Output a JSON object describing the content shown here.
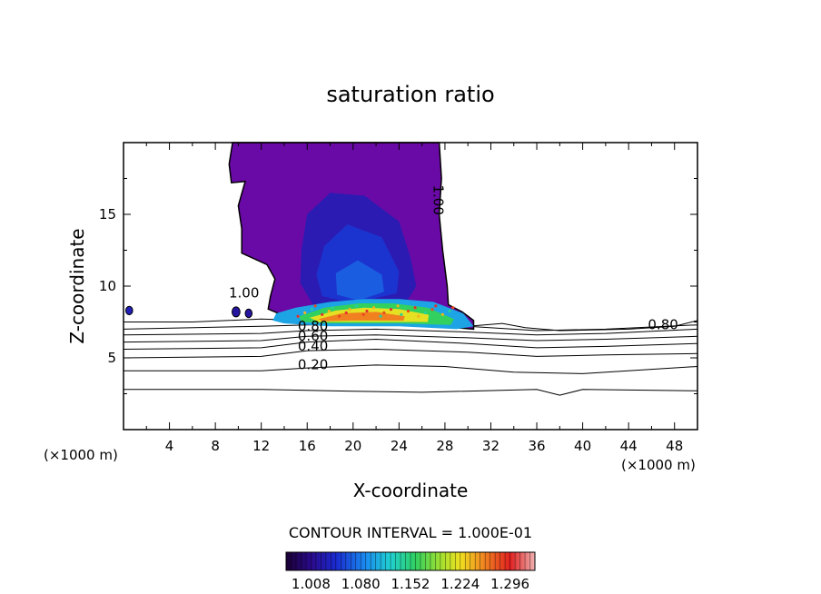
{
  "chart_data": {
    "type": "contour",
    "title": "saturation ratio",
    "xlabel": "X-coordinate",
    "ylabel": "Z-coordinate",
    "x_unit_left": "(×1000 m)",
    "x_unit_right": "(×1000 m)",
    "xlim": [
      0,
      50
    ],
    "ylim": [
      0,
      20
    ],
    "x_ticks": [
      4,
      8,
      12,
      16,
      20,
      24,
      28,
      32,
      36,
      40,
      44,
      48
    ],
    "y_ticks": [
      5,
      10,
      15
    ],
    "contour_interval_text": "CONTOUR INTERVAL = 1.000E-01",
    "colorbar_ticks": [
      "1.008",
      "1.080",
      "1.152",
      "1.224",
      "1.296"
    ],
    "colorbar_range": [
      0.972,
      1.332
    ],
    "contour_labels": [
      {
        "text": "0.20",
        "x": 16.5,
        "z": 4.2
      },
      {
        "text": "0.40",
        "x": 16.5,
        "z": 5.5
      },
      {
        "text": "0.60",
        "x": 16.5,
        "z": 6.2
      },
      {
        "text": "0.80",
        "x": 16.5,
        "z": 6.9
      },
      {
        "text": "0.80",
        "x": 47.0,
        "z": 7.0
      },
      {
        "text": "1.00",
        "x": 10.5,
        "z": 9.2
      },
      {
        "text": "1.00",
        "x": 27.0,
        "z": 16.0
      }
    ],
    "background_lines": [
      {
        "points": [
          [
            0,
            2.8
          ],
          [
            12,
            2.8
          ],
          [
            18,
            2.7
          ],
          [
            26,
            2.6
          ],
          [
            36,
            2.8
          ],
          [
            38,
            2.4
          ],
          [
            40,
            2.8
          ],
          [
            50,
            2.7
          ]
        ]
      },
      {
        "points": [
          [
            0,
            4.1
          ],
          [
            12,
            4.1
          ],
          [
            16,
            4.3
          ],
          [
            22,
            4.5
          ],
          [
            28,
            4.4
          ],
          [
            34,
            4.0
          ],
          [
            40,
            3.9
          ],
          [
            46,
            4.2
          ],
          [
            50,
            4.4
          ]
        ]
      },
      {
        "points": [
          [
            0,
            5.0
          ],
          [
            12,
            5.1
          ],
          [
            16,
            5.5
          ],
          [
            22,
            5.6
          ],
          [
            30,
            5.4
          ],
          [
            36,
            5.1
          ],
          [
            42,
            5.2
          ],
          [
            50,
            5.3
          ]
        ]
      },
      {
        "points": [
          [
            0,
            5.6
          ],
          [
            12,
            5.7
          ],
          [
            16,
            6.1
          ],
          [
            22,
            6.3
          ],
          [
            30,
            6.0
          ],
          [
            36,
            5.7
          ],
          [
            42,
            5.8
          ],
          [
            50,
            6.0
          ]
        ]
      },
      {
        "points": [
          [
            0,
            6.1
          ],
          [
            12,
            6.2
          ],
          [
            16,
            6.5
          ],
          [
            22,
            6.6
          ],
          [
            30,
            6.4
          ],
          [
            36,
            6.2
          ],
          [
            42,
            6.3
          ],
          [
            50,
            6.5
          ]
        ]
      },
      {
        "points": [
          [
            0,
            6.6
          ],
          [
            12,
            6.7
          ],
          [
            16,
            6.9
          ],
          [
            22,
            7.0
          ],
          [
            30,
            6.8
          ],
          [
            36,
            6.6
          ],
          [
            42,
            6.7
          ],
          [
            50,
            7.0
          ]
        ]
      },
      {
        "points": [
          [
            0,
            7.0
          ],
          [
            12,
            7.2
          ],
          [
            16,
            7.3
          ],
          [
            22,
            7.3
          ],
          [
            30,
            7.2
          ],
          [
            36,
            6.9
          ],
          [
            42,
            7.0
          ],
          [
            50,
            7.3
          ]
        ]
      },
      {
        "points": [
          [
            0,
            7.5
          ],
          [
            6,
            7.5
          ],
          [
            12,
            7.7
          ],
          [
            16,
            7.6
          ],
          [
            30,
            7.2
          ],
          [
            33,
            7.4
          ],
          [
            35,
            7.1
          ],
          [
            38,
            6.9
          ],
          [
            44,
            7.0
          ],
          [
            48,
            7.2
          ],
          [
            50,
            7.6
          ]
        ]
      }
    ],
    "plume_outline": [
      [
        9.2,
        18.5
      ],
      [
        9.5,
        20
      ],
      [
        27.5,
        20
      ],
      [
        27.7,
        17.5
      ],
      [
        27.5,
        15
      ],
      [
        27.8,
        12.5
      ],
      [
        28.2,
        10.0
      ],
      [
        28.3,
        8.7
      ],
      [
        29.5,
        8.2
      ],
      [
        30.5,
        7.6
      ],
      [
        30.5,
        7.0
      ],
      [
        26,
        7.3
      ],
      [
        20,
        7.4
      ],
      [
        15,
        7.6
      ],
      [
        12.6,
        8.4
      ],
      [
        12.8,
        9.3
      ],
      [
        13.2,
        10.5
      ],
      [
        12.5,
        11.5
      ],
      [
        10.3,
        12.3
      ],
      [
        10.3,
        14.0
      ],
      [
        10.0,
        15.6
      ],
      [
        10.6,
        17.3
      ],
      [
        9.4,
        17.2
      ]
    ],
    "plume_layers": [
      {
        "value": 1.03,
        "points": [
          [
            16,
            15
          ],
          [
            18,
            16.5
          ],
          [
            21,
            16.3
          ],
          [
            24,
            14.5
          ],
          [
            25,
            12
          ],
          [
            25.5,
            10
          ],
          [
            24.5,
            8.7
          ],
          [
            20,
            8.4
          ],
          [
            16.5,
            8.7
          ],
          [
            15.4,
            10.2
          ],
          [
            15.5,
            12.5
          ]
        ]
      },
      {
        "value": 1.05,
        "points": [
          [
            17.5,
            12.8
          ],
          [
            19.5,
            14.3
          ],
          [
            22.5,
            13.4
          ],
          [
            24,
            11
          ],
          [
            23.8,
            9.5
          ],
          [
            20,
            8.8
          ],
          [
            17.3,
            9.3
          ],
          [
            16.8,
            10.8
          ]
        ]
      },
      {
        "value": 1.07,
        "points": [
          [
            18.5,
            10.9
          ],
          [
            20.4,
            11.8
          ],
          [
            22.5,
            10.8
          ],
          [
            22.7,
            9.6
          ],
          [
            20.5,
            9.0
          ],
          [
            18.6,
            9.4
          ]
        ]
      }
    ],
    "band_layers": [
      {
        "value": 1.1,
        "points": [
          [
            13.3,
            8.1
          ],
          [
            15,
            8.5
          ],
          [
            18,
            8.9
          ],
          [
            21,
            9.1
          ],
          [
            24,
            9.1
          ],
          [
            27,
            8.9
          ],
          [
            29.6,
            8.1
          ],
          [
            30.5,
            7.2
          ],
          [
            29,
            7.0
          ],
          [
            24,
            7.2
          ],
          [
            18,
            7.2
          ],
          [
            14,
            7.4
          ],
          [
            13.0,
            7.6
          ]
        ]
      },
      {
        "value": 1.16,
        "points": [
          [
            15.3,
            7.9
          ],
          [
            17.5,
            8.5
          ],
          [
            20.5,
            8.8
          ],
          [
            23.5,
            8.8
          ],
          [
            26.5,
            8.5
          ],
          [
            28.8,
            7.7
          ],
          [
            28.5,
            7.3
          ],
          [
            24,
            7.4
          ],
          [
            18,
            7.4
          ],
          [
            15.5,
            7.5
          ]
        ]
      },
      {
        "value": 1.22,
        "points": [
          [
            16.2,
            7.8
          ],
          [
            18.5,
            8.3
          ],
          [
            21,
            8.5
          ],
          [
            24,
            8.4
          ],
          [
            26.6,
            8.0
          ],
          [
            26.5,
            7.5
          ],
          [
            22,
            7.5
          ],
          [
            17,
            7.5
          ]
        ]
      },
      {
        "value": 1.26,
        "points": [
          [
            17.0,
            7.7
          ],
          [
            19,
            8.1
          ],
          [
            22,
            8.2
          ],
          [
            24.5,
            7.9
          ],
          [
            24.4,
            7.6
          ],
          [
            20,
            7.6
          ],
          [
            17.3,
            7.55
          ]
        ]
      }
    ],
    "small_features": [
      {
        "value": 1.02,
        "x": 9.8,
        "z": 8.2,
        "r": 0.35
      },
      {
        "value": 1.02,
        "x": 10.9,
        "z": 8.1,
        "r": 0.3
      },
      {
        "value": 1.03,
        "x": 0.5,
        "z": 8.3,
        "r": 0.3
      }
    ]
  }
}
